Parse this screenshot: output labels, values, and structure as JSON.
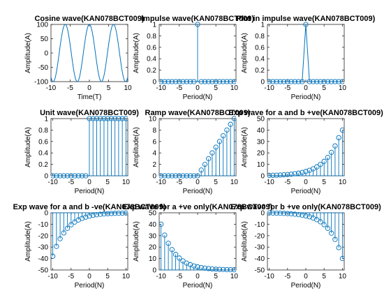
{
  "figure": {
    "background": "#ffffff",
    "line_color": "#0072bd"
  },
  "chart_data": [
    {
      "type": "line",
      "title": "Cosine wave(KAN078BCT009)",
      "xlabel": "Time(T)",
      "ylabel": "Amplitude(A)",
      "xlim": [
        -10,
        10
      ],
      "ylim": [
        -100,
        100
      ],
      "xticks": [
        -10,
        -5,
        0,
        5,
        10
      ],
      "yticks": [
        -100,
        -50,
        0,
        50,
        100
      ],
      "series": [
        {
          "function": "100*cos(t)",
          "x_range": [
            -10,
            10
          ]
        }
      ]
    },
    {
      "type": "stem",
      "title": "Impulse wave(KAN078BCT009)",
      "xlabel": "Period(N)",
      "ylabel": "Amplitude(A)",
      "xlim": [
        -10.5,
        10.5
      ],
      "ylim": [
        0,
        1
      ],
      "xticks": [
        -10,
        -5,
        0,
        5,
        10
      ],
      "yticks": [
        0,
        0.2,
        0.4,
        0.6,
        0.8,
        1
      ],
      "series": [
        {
          "x": [
            -10,
            -9,
            -8,
            -7,
            -6,
            -5,
            -4,
            -3,
            -2,
            -1,
            0,
            1,
            2,
            3,
            4,
            5,
            6,
            7,
            8,
            9,
            10
          ],
          "y": [
            0,
            0,
            0,
            0,
            0,
            0,
            0,
            0,
            0,
            0,
            1,
            0,
            0,
            0,
            0,
            0,
            0,
            0,
            0,
            0,
            0
          ]
        }
      ]
    },
    {
      "type": "line-markers",
      "title": "Plot in impulse wave(KAN078BCT009)",
      "xlabel": "Period(N)",
      "ylabel": "Amplitude(A)",
      "xlim": [
        -10.5,
        10.5
      ],
      "ylim": [
        0,
        1
      ],
      "xticks": [
        -10,
        -5,
        0,
        5,
        10
      ],
      "yticks": [
        0,
        0.2,
        0.4,
        0.6,
        0.8,
        1
      ],
      "series": [
        {
          "x": [
            -10,
            -9,
            -8,
            -7,
            -6,
            -5,
            -4,
            -3,
            -2,
            -1,
            0,
            1,
            2,
            3,
            4,
            5,
            6,
            7,
            8,
            9,
            10
          ],
          "y": [
            0,
            0,
            0,
            0,
            0,
            0,
            0,
            0,
            0,
            0,
            1,
            0,
            0,
            0,
            0,
            0,
            0,
            0,
            0,
            0,
            0
          ]
        }
      ]
    },
    {
      "type": "stem",
      "title": "Unit wave(KAN078BCT009)",
      "xlabel": "Period(N)",
      "ylabel": "Amplitude(A)",
      "xlim": [
        -10.5,
        10.5
      ],
      "ylim": [
        0,
        1
      ],
      "xticks": [
        -10,
        -5,
        0,
        5,
        10
      ],
      "yticks": [
        0,
        0.2,
        0.4,
        0.6,
        0.8,
        1
      ],
      "series": [
        {
          "x": [
            -10,
            -9,
            -8,
            -7,
            -6,
            -5,
            -4,
            -3,
            -2,
            -1,
            0,
            1,
            2,
            3,
            4,
            5,
            6,
            7,
            8,
            9,
            10
          ],
          "y": [
            0,
            0,
            0,
            0,
            0,
            0,
            0,
            0,
            0,
            0,
            1,
            1,
            1,
            1,
            1,
            1,
            1,
            1,
            1,
            1,
            1
          ]
        }
      ]
    },
    {
      "type": "stem",
      "title": "Ramp wave(KAN078BCT009)",
      "xlabel": "Period(N)",
      "ylabel": "Amplitude(A)",
      "xlim": [
        -10.5,
        10.5
      ],
      "ylim": [
        0,
        10
      ],
      "xticks": [
        -10,
        -5,
        0,
        5,
        10
      ],
      "yticks": [
        0,
        2,
        4,
        6,
        8,
        10
      ],
      "series": [
        {
          "x": [
            -10,
            -9,
            -8,
            -7,
            -6,
            -5,
            -4,
            -3,
            -2,
            -1,
            0,
            1,
            2,
            3,
            4,
            5,
            6,
            7,
            8,
            9,
            10
          ],
          "y": [
            0,
            0,
            0,
            0,
            0,
            0,
            0,
            0,
            0,
            0,
            0,
            1,
            2,
            3,
            4,
            5,
            6,
            7,
            8,
            9,
            10
          ]
        }
      ]
    },
    {
      "type": "stem",
      "title": "Exp wave for a and b +ve(KAN078BCT009)",
      "xlabel": "Period(N)",
      "ylabel": "Amplitude(A)",
      "xlim": [
        -10.5,
        10.5
      ],
      "ylim": [
        0,
        50
      ],
      "xticks": [
        -10,
        -5,
        0,
        5,
        10
      ],
      "yticks": [
        0,
        10,
        20,
        30,
        40,
        50
      ],
      "series": [
        {
          "x": [
            -10,
            -9,
            -8,
            -7,
            -6,
            -5,
            -4,
            -3,
            -2,
            -1,
            0,
            1,
            2,
            3,
            4,
            5,
            6,
            7,
            8,
            9,
            10
          ],
          "y": [
            0.33,
            0.43,
            0.54,
            0.69,
            0.88,
            1.12,
            1.43,
            1.82,
            2.32,
            2.96,
            3.77,
            4.8,
            6.1,
            7.8,
            9.9,
            12.6,
            16.1,
            20.5,
            26.1,
            33.3,
            40
          ]
        }
      ]
    },
    {
      "type": "stem",
      "title": "Exp wave for a and b -ve(KAN078BCT009)",
      "xlabel": "Period(N)",
      "ylabel": "Amplitude(A)",
      "xlim": [
        -10.5,
        10.5
      ],
      "ylim": [
        -50,
        0
      ],
      "xticks": [
        -10,
        -5,
        0,
        5,
        10
      ],
      "yticks": [
        -50,
        -40,
        -30,
        -20,
        -10,
        0
      ],
      "series": [
        {
          "x": [
            -10,
            -9,
            -8,
            -7,
            -6,
            -5,
            -4,
            -3,
            -2,
            -1,
            0,
            1,
            2,
            3,
            4,
            5,
            6,
            7,
            8,
            9,
            10
          ],
          "y": [
            -38,
            -29.4,
            -22.7,
            -17.6,
            -13.6,
            -10.5,
            -8.1,
            -6.3,
            -4.9,
            -3.8,
            -2.9,
            -2.2,
            -1.7,
            -1.3,
            -1.0,
            -0.8,
            -0.6,
            -0.5,
            -0.4,
            -0.3,
            -0.2
          ]
        }
      ]
    },
    {
      "type": "stem",
      "title": "Exp wave for a +ve only(KAN078BCT009)",
      "xlabel": "Period(N)",
      "ylabel": "Amplitude(A)",
      "xlim": [
        -10.5,
        10.5
      ],
      "ylim": [
        0,
        50
      ],
      "xticks": [
        -10,
        -5,
        0,
        5,
        10
      ],
      "yticks": [
        0,
        10,
        20,
        30,
        40,
        50
      ],
      "series": [
        {
          "x": [
            -10,
            -9,
            -8,
            -7,
            -6,
            -5,
            -4,
            -3,
            -2,
            -1,
            0,
            1,
            2,
            3,
            4,
            5,
            6,
            7,
            8,
            9,
            10
          ],
          "y": [
            40,
            30.5,
            23.3,
            17.8,
            13.6,
            10.4,
            7.9,
            6.0,
            4.6,
            3.5,
            2.7,
            2.1,
            1.6,
            1.2,
            0.9,
            0.7,
            0.5,
            0.4,
            0.3,
            0.24,
            0.18
          ]
        }
      ]
    },
    {
      "type": "stem",
      "title": "Exp wave for b +ve only(KAN078BCT009)",
      "xlabel": "Period(N)",
      "ylabel": "Amplitude(A)",
      "xlim": [
        -10.5,
        10.5
      ],
      "ylim": [
        -50,
        0
      ],
      "xticks": [
        -10,
        -5,
        0,
        5,
        10
      ],
      "yticks": [
        -50,
        -40,
        -30,
        -20,
        -10,
        0
      ],
      "series": [
        {
          "x": [
            -10,
            -9,
            -8,
            -7,
            -6,
            -5,
            -4,
            -3,
            -2,
            -1,
            0,
            1,
            2,
            3,
            4,
            5,
            6,
            7,
            8,
            9,
            10
          ],
          "y": [
            -0.18,
            -0.24,
            -0.3,
            -0.4,
            -0.5,
            -0.7,
            -0.9,
            -1.2,
            -1.6,
            -2.1,
            -2.7,
            -3.5,
            -4.6,
            -6.0,
            -7.9,
            -10.4,
            -13.6,
            -17.8,
            -23.3,
            -30.5,
            -40
          ]
        }
      ]
    }
  ]
}
